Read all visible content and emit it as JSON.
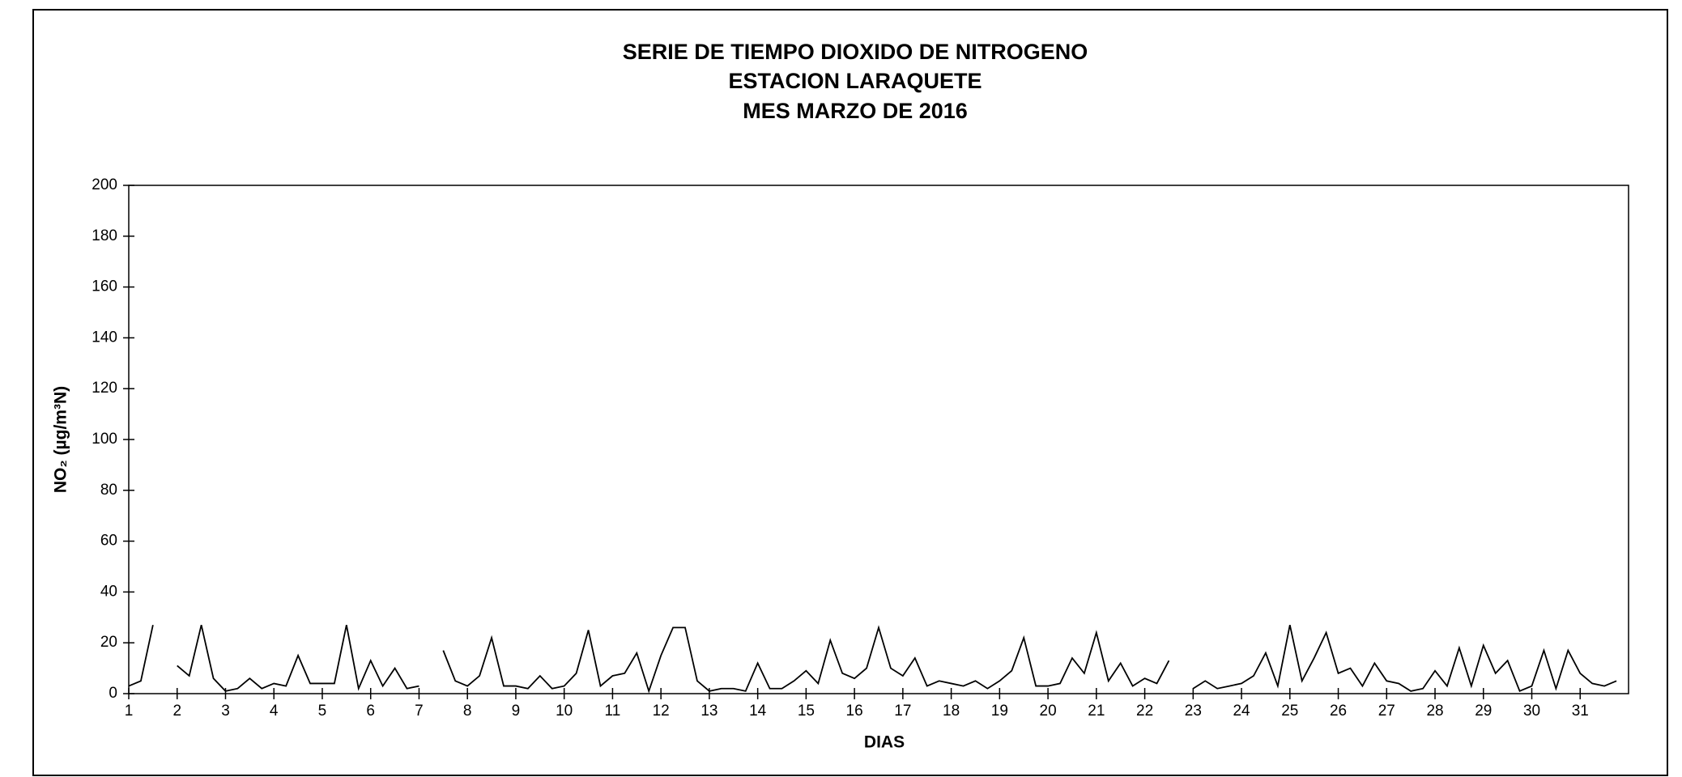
{
  "chart_data": {
    "type": "line",
    "title": [
      "SERIE DE TIEMPO DIOXIDO DE NITROGENO",
      "ESTACION LARAQUETE",
      "MES MARZO  DE 2016"
    ],
    "x_label": "DIAS",
    "y_label": "NO₂  (µg/m³N)",
    "xlim": [
      1,
      32
    ],
    "ylim": [
      0,
      200
    ],
    "xticks": [
      1,
      2,
      3,
      4,
      5,
      6,
      7,
      8,
      9,
      10,
      11,
      12,
      13,
      14,
      15,
      16,
      17,
      18,
      19,
      20,
      21,
      22,
      23,
      24,
      25,
      26,
      27,
      28,
      29,
      30,
      31
    ],
    "yticks": [
      0,
      20,
      40,
      60,
      80,
      100,
      120,
      140,
      160,
      180,
      200
    ],
    "x": [
      1,
      1.25,
      1.5,
      1.75,
      2,
      2.25,
      2.5,
      2.75,
      3,
      3.25,
      3.5,
      3.75,
      4,
      4.25,
      4.5,
      4.75,
      5,
      5.25,
      5.5,
      5.75,
      6,
      6.25,
      6.5,
      6.75,
      7,
      7.25,
      7.5,
      7.75,
      8,
      8.25,
      8.5,
      8.75,
      9,
      9.25,
      9.5,
      9.75,
      10,
      10.25,
      10.5,
      10.75,
      11,
      11.25,
      11.5,
      11.75,
      12,
      12.25,
      12.5,
      12.75,
      13,
      13.25,
      13.5,
      13.75,
      14,
      14.25,
      14.5,
      14.75,
      15,
      15.25,
      15.5,
      15.75,
      16,
      16.25,
      16.5,
      16.75,
      17,
      17.25,
      17.5,
      17.75,
      18,
      18.25,
      18.5,
      18.75,
      19,
      19.25,
      19.5,
      19.75,
      20,
      20.25,
      20.5,
      20.75,
      21,
      21.25,
      21.5,
      21.75,
      22,
      22.25,
      22.5,
      22.75,
      23,
      23.25,
      23.5,
      23.75,
      24,
      24.25,
      24.5,
      24.75,
      25,
      25.25,
      25.5,
      25.75,
      26,
      26.25,
      26.5,
      26.75,
      27,
      27.25,
      27.5,
      27.75,
      28,
      28.25,
      28.5,
      28.75,
      29,
      29.25,
      29.5,
      29.75,
      30,
      30.25,
      30.5,
      30.75,
      31,
      31.25,
      31.5,
      31.75
    ],
    "series": [
      {
        "name": "NO2",
        "color": "#000000",
        "values": [
          3,
          5,
          27,
          null,
          11,
          7,
          27,
          6,
          1,
          2,
          6,
          2,
          4,
          3,
          15,
          4,
          4,
          4,
          27,
          2,
          13,
          3,
          10,
          2,
          3,
          null,
          17,
          5,
          3,
          7,
          22,
          3,
          3,
          2,
          7,
          2,
          3,
          8,
          25,
          3,
          7,
          8,
          16,
          1,
          15,
          26,
          26,
          5,
          1,
          2,
          2,
          1,
          12,
          2,
          2,
          5,
          9,
          4,
          21,
          8,
          6,
          10,
          26,
          10,
          7,
          14,
          3,
          5,
          4,
          3,
          5,
          2,
          5,
          9,
          22,
          3,
          3,
          4,
          14,
          8,
          24,
          5,
          12,
          3,
          6,
          4,
          13,
          null,
          2,
          5,
          2,
          3,
          4,
          7,
          16,
          3,
          27,
          5,
          14,
          24,
          8,
          10,
          3,
          12,
          5,
          4,
          1,
          2,
          9,
          3,
          18,
          3,
          19,
          8,
          13,
          1,
          3,
          17,
          2,
          17,
          8,
          4,
          3,
          5
        ]
      }
    ]
  }
}
